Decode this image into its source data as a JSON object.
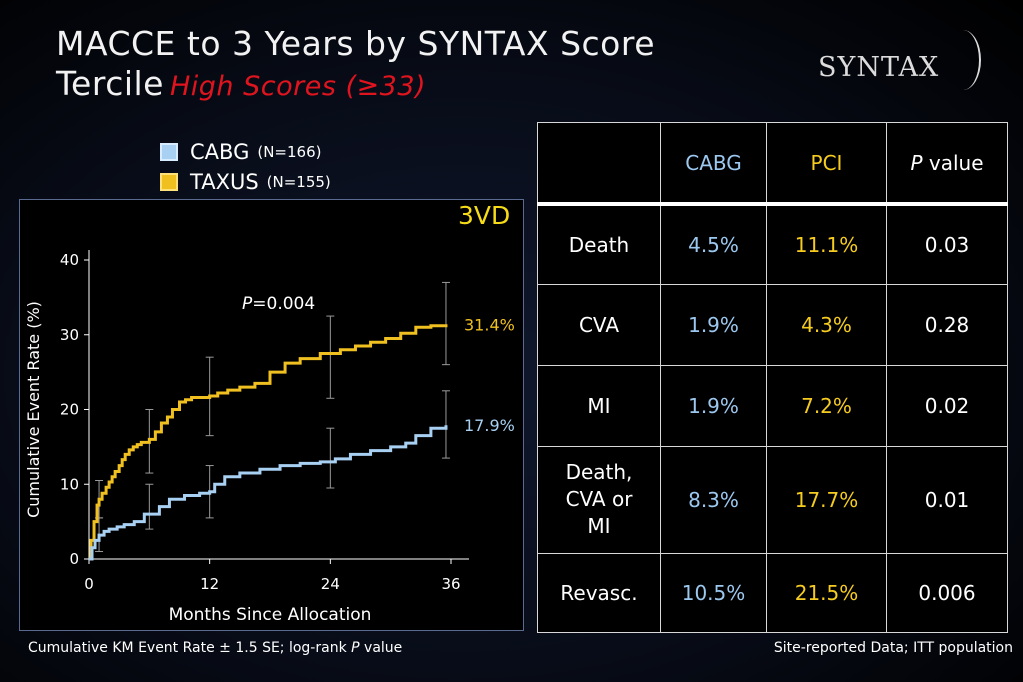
{
  "slide": {
    "title_line1": "MACCE to 3 Years by SYNTAX Score",
    "title_line2": "Tercile",
    "subtitle": "High Scores (≥33)",
    "logo": "SYNTAX"
  },
  "legend": [
    {
      "name": "CABG",
      "n": "(N=166)"
    },
    {
      "name": "TAXUS",
      "n": "(N=155)"
    }
  ],
  "tag": "3VD",
  "chart_data": {
    "type": "line",
    "step": true,
    "xlabel": "Months Since Allocation",
    "ylabel": "Cumulative Event Rate (%)",
    "xlim": [
      0,
      36
    ],
    "ylim": [
      0,
      40
    ],
    "xticks": [
      0,
      12,
      24,
      36
    ],
    "yticks": [
      0,
      10,
      20,
      30,
      40
    ],
    "annotation": "P=0.004",
    "series": [
      {
        "name": "TAXUS",
        "color": "#f0c020",
        "end_label": "31.4%",
        "x": [
          0,
          0.2,
          0.5,
          0.8,
          1.0,
          1.3,
          1.7,
          2.0,
          2.3,
          2.6,
          3.0,
          3.3,
          3.6,
          4.0,
          4.4,
          4.8,
          5.2,
          6.0,
          6.6,
          7.2,
          7.8,
          8.3,
          9.0,
          9.6,
          10.2,
          12.0,
          12.8,
          13.8,
          15.0,
          16.5,
          18.0,
          19.5,
          21.0,
          23.0,
          25.0,
          26.5,
          28.0,
          29.5,
          31.0,
          32.5,
          34.0,
          35.5
        ],
        "y": [
          0,
          2.5,
          5.0,
          7.2,
          8.0,
          8.8,
          9.6,
          10.3,
          11.0,
          11.7,
          12.5,
          13.3,
          14.0,
          14.6,
          15.0,
          15.3,
          15.6,
          16.0,
          17.0,
          18.2,
          19.0,
          20.0,
          21.0,
          21.3,
          21.6,
          21.8,
          22.2,
          22.6,
          23.0,
          23.5,
          25.0,
          26.2,
          26.8,
          27.5,
          28.0,
          28.5,
          29.0,
          29.5,
          30.2,
          31.0,
          31.2,
          31.4
        ]
      },
      {
        "name": "CABG",
        "color": "#a8d0f2",
        "end_label": "17.9%",
        "x": [
          0,
          0.3,
          0.6,
          1.0,
          1.5,
          2.0,
          2.8,
          3.5,
          4.5,
          5.5,
          7.0,
          8.0,
          9.5,
          11.0,
          12.0,
          12.5,
          13.5,
          15.0,
          17.0,
          19.0,
          21.0,
          23.0,
          24.5,
          26.0,
          28.0,
          30.0,
          31.5,
          32.5,
          34.0,
          35.5
        ],
        "y": [
          0,
          1.5,
          2.5,
          3.2,
          3.7,
          4.0,
          4.3,
          4.6,
          5.0,
          6.0,
          7.0,
          8.0,
          8.5,
          8.8,
          9.0,
          10.0,
          11.0,
          11.5,
          12.0,
          12.5,
          12.8,
          13.0,
          13.4,
          14.0,
          14.5,
          15.0,
          15.5,
          16.5,
          17.5,
          17.9
        ]
      }
    ],
    "error_bars": [
      {
        "series": "TAXUS",
        "x": 1.0,
        "low": 5.5,
        "high": 10.5
      },
      {
        "series": "TAXUS",
        "x": 6.0,
        "low": 11.5,
        "high": 20.0
      },
      {
        "series": "TAXUS",
        "x": 12.0,
        "low": 16.5,
        "high": 27.0
      },
      {
        "series": "TAXUS",
        "x": 24.0,
        "low": 21.5,
        "high": 32.5
      },
      {
        "series": "TAXUS",
        "x": 35.5,
        "low": 26.0,
        "high": 37.0
      },
      {
        "series": "CABG",
        "x": 1.0,
        "low": 1.0,
        "high": 5.5
      },
      {
        "series": "CABG",
        "x": 6.0,
        "low": 4.0,
        "high": 10.0
      },
      {
        "series": "CABG",
        "x": 12.0,
        "low": 5.5,
        "high": 12.5
      },
      {
        "series": "CABG",
        "x": 24.0,
        "low": 9.5,
        "high": 17.5
      },
      {
        "series": "CABG",
        "x": 35.5,
        "low": 13.5,
        "high": 22.5
      }
    ]
  },
  "table": {
    "header": {
      "blank": "",
      "cabg": "CABG",
      "pci": "PCI",
      "p_italic": "P",
      "p_rest": " value"
    },
    "rows": [
      {
        "label": "Death",
        "cabg": "4.5%",
        "pci": "11.1%",
        "p": "0.03"
      },
      {
        "label": "CVA",
        "cabg": "1.9%",
        "pci": "4.3%",
        "p": "0.28"
      },
      {
        "label": "MI",
        "cabg": "1.9%",
        "pci": "7.2%",
        "p": "0.02"
      },
      {
        "label_lines": [
          "Death,",
          "CVA or",
          "MI"
        ],
        "cabg": "8.3%",
        "pci": "17.7%",
        "p": "0.01"
      },
      {
        "label": "Revasc.",
        "cabg": "10.5%",
        "pci": "21.5%",
        "p": "0.006"
      }
    ]
  },
  "footer": {
    "left_a": "Cumulative KM Event Rate ± 1.5 SE; log-rank ",
    "left_italic": "P",
    "left_b": " value",
    "right": "Site-reported Data; ITT population"
  }
}
